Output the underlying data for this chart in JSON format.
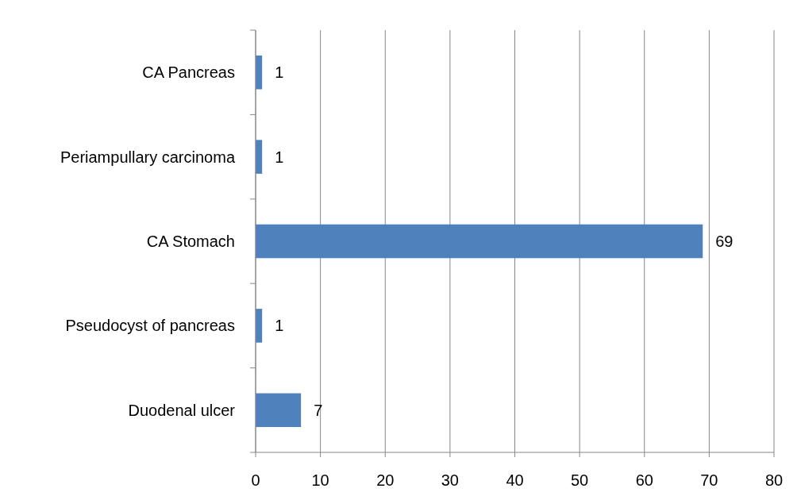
{
  "chart_data": {
    "type": "bar",
    "orientation": "horizontal",
    "categories": [
      "CA Pancreas",
      "Periampullary carcinoma",
      "CA Stomach",
      "Pseudocyst of pancreas",
      "Duodenal ulcer"
    ],
    "values": [
      1,
      1,
      69,
      1,
      7
    ],
    "color": "#4f81bd",
    "xlim": [
      0,
      80
    ],
    "xticks": [
      0,
      10,
      20,
      30,
      40,
      50,
      60,
      70,
      80
    ],
    "grid": "x",
    "data_labels": true
  }
}
